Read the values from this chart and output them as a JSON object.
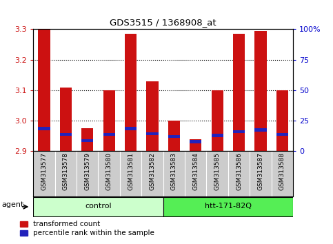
{
  "title": "GDS3515 / 1368908_at",
  "samples": [
    "GSM313577",
    "GSM313578",
    "GSM313579",
    "GSM313580",
    "GSM313581",
    "GSM313582",
    "GSM313583",
    "GSM313584",
    "GSM313585",
    "GSM313586",
    "GSM313587",
    "GSM313588"
  ],
  "red_values": [
    3.3,
    3.11,
    2.975,
    3.1,
    3.285,
    3.13,
    3.0,
    2.94,
    3.1,
    3.285,
    3.295,
    3.1
  ],
  "blue_values": [
    2.975,
    2.955,
    2.935,
    2.955,
    2.975,
    2.958,
    2.948,
    2.932,
    2.952,
    2.965,
    2.97,
    2.955
  ],
  "ymin": 2.9,
  "ymax": 3.3,
  "yticks": [
    2.9,
    3.0,
    3.1,
    3.2,
    3.3
  ],
  "right_yticks": [
    0,
    25,
    50,
    75,
    100
  ],
  "right_yticklabels": [
    "0",
    "25",
    "50",
    "75",
    "100%"
  ],
  "groups": [
    {
      "label": "control",
      "start": 0,
      "end": 5,
      "color": "#ccffcc"
    },
    {
      "label": "htt-171-82Q",
      "start": 6,
      "end": 11,
      "color": "#55ee55"
    }
  ],
  "agent_label": "agent",
  "bar_width": 0.55,
  "red_color": "#cc1111",
  "blue_color": "#2222bb",
  "bg_color": "#cccccc",
  "plot_bg": "#ffffff",
  "legend_red": "transformed count",
  "legend_blue": "percentile rank within the sample"
}
